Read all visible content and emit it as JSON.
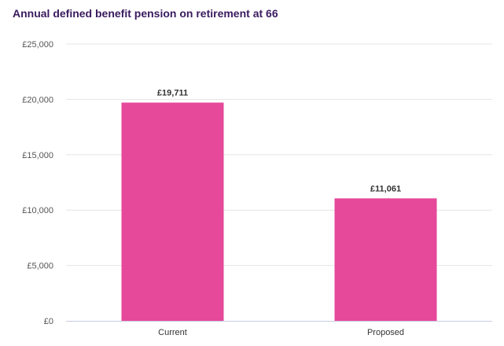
{
  "chart_data": {
    "type": "bar",
    "title": "Annual defined benefit pension on retirement at 66",
    "categories": [
      "Current",
      "Proposed"
    ],
    "values": [
      19711,
      11061
    ],
    "data_labels": [
      "£19,711",
      "£11,061"
    ],
    "ylim": [
      0,
      25000
    ],
    "yticks": [
      0,
      5000,
      10000,
      15000,
      20000,
      25000
    ],
    "ytick_labels": [
      "£0",
      "£5,000",
      "£10,000",
      "£15,000",
      "£20,000",
      "£25,000"
    ],
    "xlabel": "",
    "ylabel": "",
    "grid": true,
    "bar_color": "#e6489a",
    "title_color": "#3a1a5e"
  }
}
